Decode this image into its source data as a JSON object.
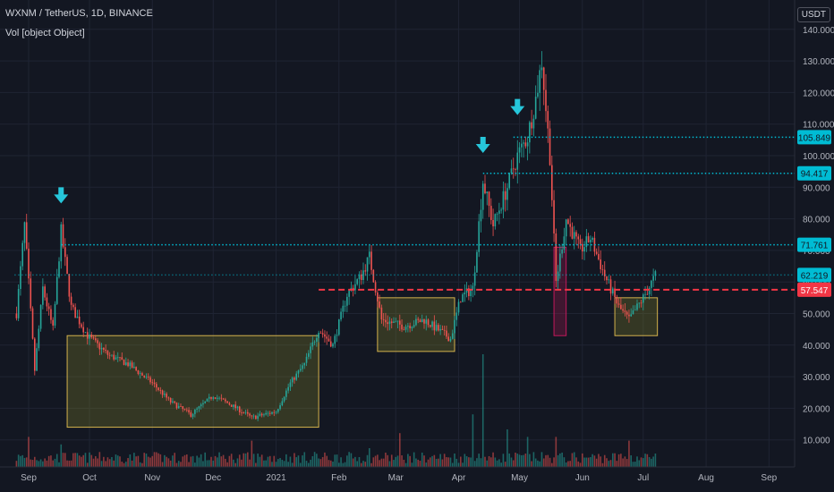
{
  "header": {
    "title": "WXNM / TetherUS, 1D, BINANCE",
    "volume_label": "Vol [object Object]",
    "currency": "USDT"
  },
  "colors": {
    "background": "#131722",
    "grid": "#1f2433",
    "up": "#26a69a",
    "down": "#ef5350",
    "level_line": "#00bcd4",
    "support_line": "#f23645",
    "box_fill": "#8d8d2c",
    "box_border": "#d4b24c",
    "red_box": "#c2185b"
  },
  "chart_data": {
    "type": "candlestick",
    "title": "WXNM / TetherUS, 1D, BINANCE",
    "ylim": [
      0,
      140
    ],
    "y_ticks": [
      "10.000",
      "20.000",
      "30.000",
      "40.000",
      "50.000",
      "60.000",
      "70.000",
      "80.000",
      "90.000",
      "100.000",
      "110.000",
      "120.000",
      "130.000",
      "140.000"
    ],
    "x_ticks": [
      "Sep",
      "Oct",
      "Nov",
      "Dec",
      "2021",
      "Feb",
      "Mar",
      "Apr",
      "May",
      "Jun",
      "Jul",
      "Aug",
      "Sep"
    ],
    "grid": true,
    "price_path": [
      [
        "2020-08-26",
        50
      ],
      [
        "2020-08-30",
        78
      ],
      [
        "2020-09-04",
        32
      ],
      [
        "2020-09-08",
        58
      ],
      [
        "2020-09-13",
        45
      ],
      [
        "2020-09-17",
        76
      ],
      [
        "2020-09-22",
        52
      ],
      [
        "2020-09-30",
        43
      ],
      [
        "2020-10-10",
        37
      ],
      [
        "2020-10-20",
        34
      ],
      [
        "2020-11-01",
        28
      ],
      [
        "2020-11-10",
        22
      ],
      [
        "2020-11-20",
        18
      ],
      [
        "2020-12-01",
        24
      ],
      [
        "2020-12-10",
        21
      ],
      [
        "2020-12-20",
        17
      ],
      [
        "2021-01-01",
        19
      ],
      [
        "2021-01-08",
        28
      ],
      [
        "2021-01-15",
        34
      ],
      [
        "2021-01-22",
        45
      ],
      [
        "2021-01-29",
        40
      ],
      [
        "2021-02-05",
        56
      ],
      [
        "2021-02-12",
        62
      ],
      [
        "2021-02-16",
        68
      ],
      [
        "2021-02-22",
        48
      ],
      [
        "2021-03-05",
        46
      ],
      [
        "2021-03-15",
        48
      ],
      [
        "2021-03-28",
        42
      ],
      [
        "2021-04-02",
        55
      ],
      [
        "2021-04-08",
        58
      ],
      [
        "2021-04-13",
        92
      ],
      [
        "2021-04-18",
        78
      ],
      [
        "2021-04-25",
        90
      ],
      [
        "2021-04-30",
        100
      ],
      [
        "2021-05-05",
        106
      ],
      [
        "2021-05-09",
        118
      ],
      [
        "2021-05-12",
        130
      ],
      [
        "2021-05-16",
        100
      ],
      [
        "2021-05-19",
        60
      ],
      [
        "2021-05-24",
        80
      ],
      [
        "2021-05-31",
        70
      ],
      [
        "2021-06-05",
        74
      ],
      [
        "2021-06-12",
        62
      ],
      [
        "2021-06-19",
        52
      ],
      [
        "2021-06-24",
        48
      ],
      [
        "2021-07-01",
        55
      ],
      [
        "2021-07-07",
        62
      ]
    ],
    "volume_spikes": [
      [
        "2020-09-01",
        8
      ],
      [
        "2020-09-17",
        6
      ],
      [
        "2020-12-20",
        7
      ],
      [
        "2021-01-20",
        4
      ],
      [
        "2021-02-16",
        5
      ],
      [
        "2021-03-03",
        9
      ],
      [
        "2021-04-08",
        14
      ],
      [
        "2021-04-13",
        30
      ],
      [
        "2021-04-25",
        10
      ],
      [
        "2021-05-05",
        8
      ],
      [
        "2021-05-19",
        8
      ],
      [
        "2021-06-24",
        7
      ]
    ],
    "levels": [
      {
        "label": "105.849",
        "value": 105.849,
        "from": "2021-04-28",
        "style": "dotted",
        "color": "#00bcd4"
      },
      {
        "label": "94.417",
        "value": 94.417,
        "from": "2021-04-13",
        "style": "dotted",
        "color": "#00bcd4"
      },
      {
        "label": "71.761",
        "value": 71.761,
        "from": "2020-09-17",
        "style": "dotted",
        "color": "#00bcd4"
      },
      {
        "label": "62.219",
        "value": 62.219,
        "from": "2020-08-25",
        "style": "dotted-faint",
        "color": "#00bcd4"
      },
      {
        "label": "57.547",
        "value": 57.547,
        "from": "2021-01-22",
        "style": "dashed",
        "color": "#f23645"
      }
    ],
    "boxes": [
      {
        "from": "2020-09-20",
        "to": "2021-01-22",
        "low": 14,
        "high": 43,
        "kind": "range"
      },
      {
        "from": "2021-02-20",
        "to": "2021-03-30",
        "low": 38,
        "high": 55,
        "kind": "range"
      },
      {
        "from": "2021-05-18",
        "to": "2021-05-24",
        "low": 43,
        "high": 71,
        "kind": "red"
      },
      {
        "from": "2021-06-17",
        "to": "2021-07-08",
        "low": 43,
        "high": 55,
        "kind": "range"
      }
    ],
    "arrows": [
      {
        "date": "2020-09-17",
        "value": 86
      },
      {
        "date": "2021-04-13",
        "value": 102
      },
      {
        "date": "2021-04-30",
        "value": 114
      }
    ]
  }
}
